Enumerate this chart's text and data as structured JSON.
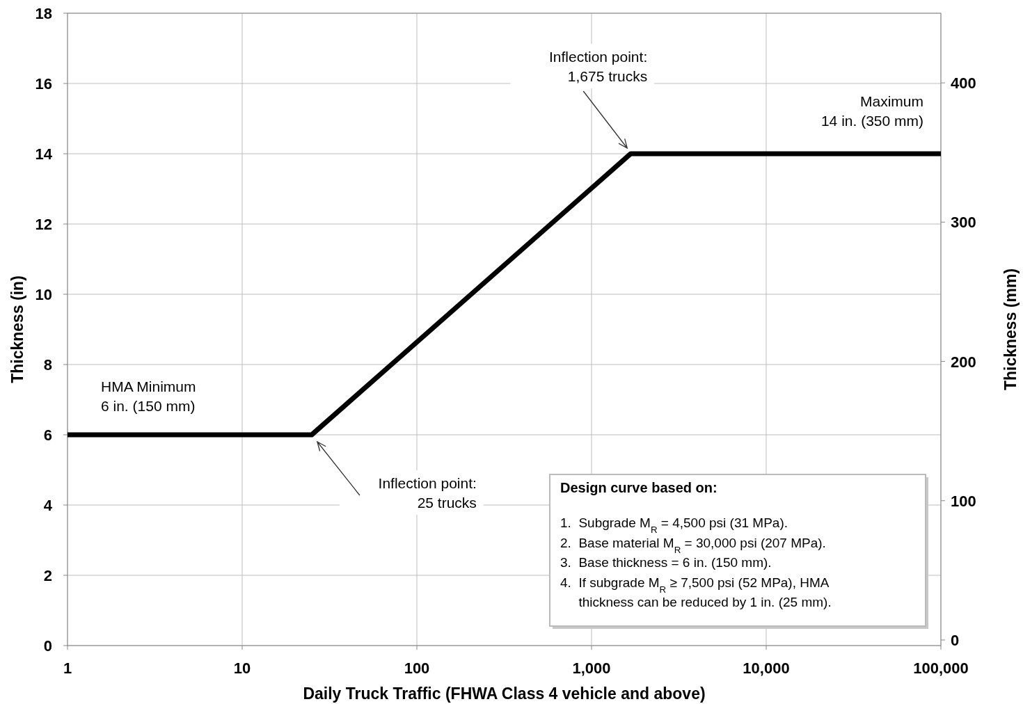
{
  "chart_data": {
    "type": "line",
    "xlabel": "Daily Truck Traffic (FHWA Class 4 vehicle and above)",
    "ylabel": "Thickness (in)",
    "y2label": "Thickness (mm)",
    "log": "x",
    "grid": true,
    "marker": "none",
    "line_style": "solid",
    "xlim": [
      1,
      100000
    ],
    "xticks": [
      1,
      10,
      100,
      {
        "value": 1000,
        "label": "1,000"
      },
      {
        "value": 10000,
        "label": "10,000"
      },
      {
        "value": 100000,
        "label": "100,000"
      }
    ],
    "ylim": [
      0,
      18
    ],
    "yticks": [
      0,
      2,
      4,
      6,
      8,
      10,
      12,
      14,
      16,
      18
    ],
    "y2lim": [
      -4,
      450
    ],
    "y2ticks": [
      0,
      100,
      200,
      300,
      400
    ],
    "series": [
      {
        "color": "#000000",
        "x": [
          1,
          25,
          1675,
          100000
        ],
        "values": [
          6,
          6,
          14,
          14
        ]
      }
    ],
    "annotations": [
      "HMA Minimum\n6 in. (150 mm)",
      "Inflection point:\n25 trucks",
      "Inflection point:\n1,675 trucks",
      "Maximum\n14 in. (350 mm)",
      "Design curve based on:",
      "1.  Subgrade M$_{R}$ = 4,500 psi (31 MPa).",
      "2.  Base material M$_{R}$ = 30,000 psi (207 MPa).",
      "3.  Base thickness = 6 in. (150 mm).",
      "4.  If subgrade M$_{R}$ ≥ 7,500 psi (52 MPa), HMA\n     thickness can be reduced by 1 in. (25 mm)."
    ]
  }
}
